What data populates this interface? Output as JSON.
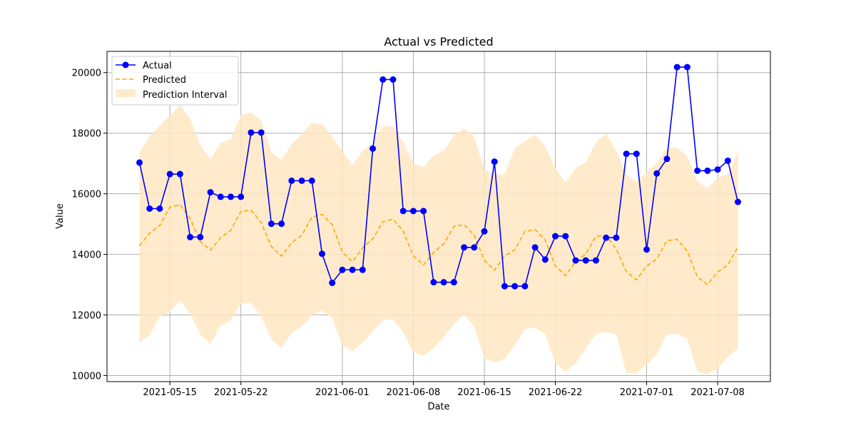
{
  "chart_data": {
    "type": "line",
    "title": "Actual vs Predicted",
    "xlabel": "Date",
    "ylabel": "Value",
    "start_date": "2021-05-12",
    "x_ticks": [
      "2021-05-15",
      "2021-05-22",
      "2021-06-01",
      "2021-06-08",
      "2021-06-15",
      "2021-06-22",
      "2021-07-01",
      "2021-07-08"
    ],
    "ylim": [
      9800,
      20700
    ],
    "y_ticks": [
      10000,
      12000,
      14000,
      16000,
      18000,
      20000
    ],
    "grid": true,
    "legend_position": "top-left",
    "legend": {
      "actual": "Actual",
      "predicted": "Predicted",
      "interval": "Prediction Interval"
    },
    "colors": {
      "actual": "#0000ff",
      "predicted": "#ffa500",
      "interval": "#ffe8c2"
    },
    "series": [
      {
        "name": "Actual",
        "values": [
          17030,
          15510,
          15510,
          16650,
          16650,
          14570,
          14570,
          16050,
          15900,
          15900,
          15900,
          18020,
          18020,
          15010,
          15010,
          16430,
          16430,
          16430,
          14020,
          13060,
          13490,
          13490,
          13490,
          17490,
          19770,
          19770,
          15430,
          15430,
          15430,
          13080,
          13080,
          13080,
          14230,
          14230,
          14760,
          17060,
          12950,
          12950,
          12950,
          14230,
          13830,
          14600,
          14600,
          13800,
          13800,
          13800,
          14550,
          14550,
          17320,
          17320,
          14160,
          16670,
          17150,
          20180,
          20180,
          16760,
          16760,
          16800,
          17090,
          15730
        ]
      },
      {
        "name": "Predicted",
        "values": [
          14280,
          14700,
          14950,
          15560,
          15640,
          15180,
          14420,
          14140,
          14550,
          14790,
          15420,
          15460,
          15050,
          14260,
          13940,
          14380,
          14630,
          15230,
          15320,
          14980,
          14070,
          13760,
          14220,
          14510,
          15080,
          15160,
          14770,
          13950,
          13650,
          14070,
          14340,
          14920,
          14980,
          14640,
          13800,
          13480,
          13950,
          14150,
          14750,
          14820,
          14470,
          13620,
          13300,
          13760,
          14010,
          14600,
          14620,
          14180,
          13430,
          13160,
          13610,
          13850,
          14450,
          14500,
          14110,
          13260,
          13000,
          13420,
          13650,
          14250
        ]
      }
    ],
    "interval": {
      "lower": [
        11080,
        11350,
        11950,
        12100,
        12480,
        12050,
        11350,
        11050,
        11650,
        11820,
        12380,
        12390,
        11950,
        11200,
        10900,
        11420,
        11620,
        11980,
        12140,
        11900,
        11000,
        10800,
        11080,
        11450,
        11820,
        11860,
        11420,
        10760,
        10660,
        10900,
        11280,
        11700,
        12010,
        11620,
        10560,
        10440,
        10540,
        11000,
        11530,
        11580,
        11360,
        10420,
        10120,
        10400,
        10900,
        11370,
        11430,
        11360,
        10080,
        10090,
        10360,
        10700,
        11360,
        11370,
        11220,
        10120,
        10040,
        10220,
        10620,
        10890
      ],
      "upper": [
        17350,
        17900,
        18250,
        18580,
        18930,
        18480,
        17600,
        17130,
        17680,
        17800,
        18600,
        18680,
        18430,
        17380,
        17110,
        17640,
        17970,
        18340,
        18290,
        17900,
        17400,
        16950,
        17420,
        17650,
        18220,
        18230,
        17700,
        17010,
        16880,
        17270,
        17410,
        17920,
        18160,
        17880,
        16790,
        16640,
        16640,
        17510,
        17730,
        17950,
        17570,
        16840,
        16370,
        16850,
        17030,
        17700,
        17990,
        17420,
        16630,
        16390,
        16700,
        17020,
        17500,
        17520,
        17240,
        16420,
        16180,
        16540,
        16640,
        17390
      ]
    }
  }
}
